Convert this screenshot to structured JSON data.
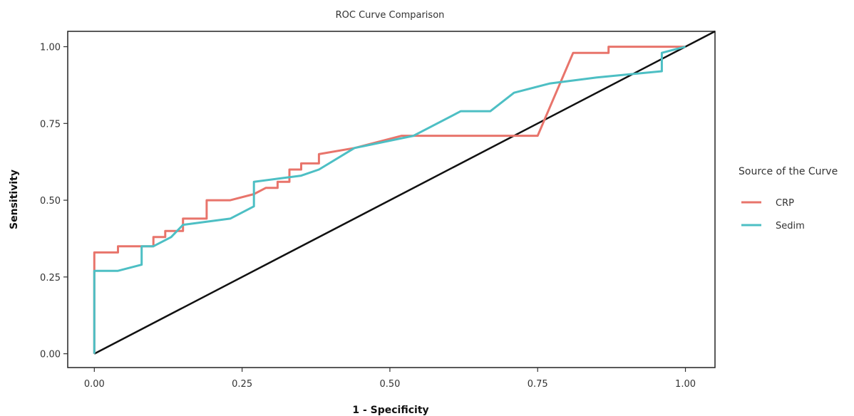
{
  "chart_data": {
    "type": "line",
    "title": "ROC Curve Comparison",
    "xlabel": "1 - Specificity",
    "ylabel": "Sensitivity",
    "xlim": [
      -0.045,
      1.05
    ],
    "ylim": [
      -0.045,
      1.05
    ],
    "xticks": [
      0.0,
      0.25,
      0.5,
      0.75,
      1.0
    ],
    "yticks": [
      0.0,
      0.25,
      0.5,
      0.75,
      1.0
    ],
    "xtick_labels": [
      "0.00",
      "0.25",
      "0.50",
      "0.75",
      "1.00"
    ],
    "ytick_labels": [
      "0.00",
      "0.25",
      "0.50",
      "0.75",
      "1.00"
    ],
    "grid": false,
    "legend": {
      "title": "Source of the Curve",
      "position": "right"
    },
    "reference_line": {
      "x": [
        0.0,
        1.05
      ],
      "y": [
        0.0,
        1.05
      ],
      "color": "#111111"
    },
    "series": [
      {
        "name": "CRP",
        "color": "#e8746b",
        "x": [
          0.0,
          0.0,
          0.04,
          0.04,
          0.08,
          0.1,
          0.1,
          0.12,
          0.12,
          0.15,
          0.15,
          0.19,
          0.19,
          0.23,
          0.27,
          0.27,
          0.29,
          0.31,
          0.31,
          0.33,
          0.33,
          0.35,
          0.35,
          0.38,
          0.38,
          0.44,
          0.52,
          0.54,
          0.67,
          0.73,
          0.75,
          0.81,
          0.87,
          0.87,
          1.0
        ],
        "y": [
          0.0,
          0.33,
          0.33,
          0.35,
          0.35,
          0.35,
          0.38,
          0.38,
          0.4,
          0.4,
          0.44,
          0.44,
          0.5,
          0.5,
          0.52,
          0.52,
          0.54,
          0.54,
          0.56,
          0.56,
          0.6,
          0.6,
          0.62,
          0.62,
          0.65,
          0.67,
          0.71,
          0.71,
          0.71,
          0.71,
          0.71,
          0.98,
          0.98,
          1.0,
          1.0
        ]
      },
      {
        "name": "Sedim",
        "color": "#4dbfc4",
        "x": [
          0.0,
          0.0,
          0.04,
          0.08,
          0.08,
          0.1,
          0.13,
          0.15,
          0.19,
          0.23,
          0.27,
          0.27,
          0.31,
          0.35,
          0.38,
          0.44,
          0.54,
          0.62,
          0.67,
          0.71,
          0.77,
          0.85,
          0.96,
          0.96,
          1.0
        ],
        "y": [
          0.0,
          0.27,
          0.27,
          0.29,
          0.35,
          0.35,
          0.38,
          0.42,
          0.43,
          0.44,
          0.48,
          0.56,
          0.57,
          0.58,
          0.6,
          0.67,
          0.71,
          0.79,
          0.79,
          0.85,
          0.88,
          0.9,
          0.92,
          0.98,
          1.0
        ]
      }
    ]
  }
}
